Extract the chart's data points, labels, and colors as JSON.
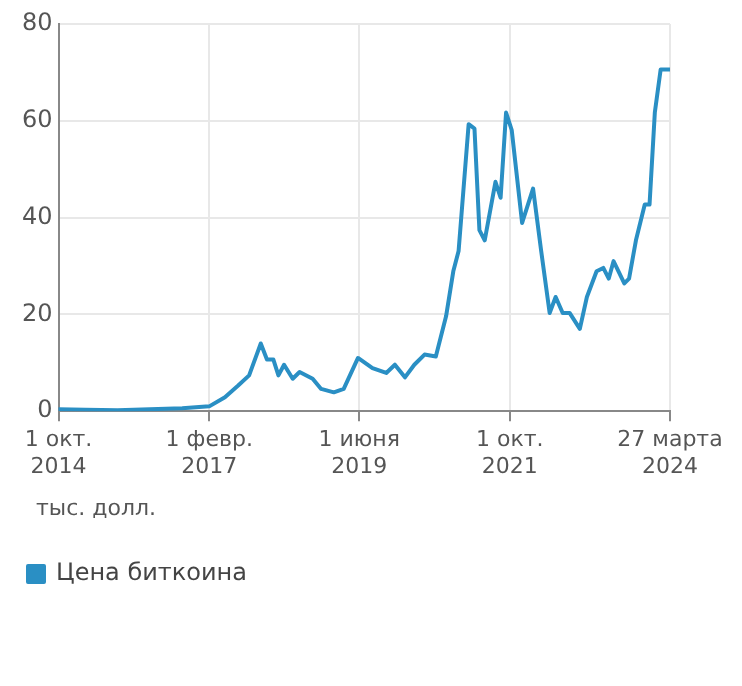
{
  "chart_data": {
    "type": "line",
    "annotations": [
      "тыс. долл."
    ],
    "x": [
      "2014-10-01",
      "2015-03-01",
      "2015-09-01",
      "2016-03-01",
      "2016-09-01",
      "2017-02-01",
      "2017-05-01",
      "2017-07-15",
      "2017-09-15",
      "2017-11-20",
      "2017-12-25",
      "2018-01-30",
      "2018-02-28",
      "2018-04-01",
      "2018-05-20",
      "2018-06-28",
      "2018-09-10",
      "2018-10-28",
      "2019-01-08",
      "2019-03-05",
      "2019-05-25",
      "2019-08-15",
      "2019-11-01",
      "2019-12-20",
      "2020-02-15",
      "2020-04-08",
      "2020-06-05",
      "2020-08-08",
      "2020-10-05",
      "2020-11-15",
      "2020-12-15",
      "2021-02-10",
      "2021-03-15",
      "2021-04-12",
      "2021-05-12",
      "2021-07-12",
      "2021-08-10",
      "2021-09-10",
      "2021-10-12",
      "2021-12-10",
      "2022-02-10",
      "2022-03-28",
      "2022-05-15",
      "2022-06-18",
      "2022-07-28",
      "2022-09-05",
      "2022-11-02",
      "2022-12-12",
      "2023-02-05",
      "2023-03-15",
      "2023-04-15",
      "2023-05-12",
      "2023-07-12",
      "2023-08-08",
      "2023-09-16",
      "2023-11-05",
      "2023-12-02",
      "2024-01-01",
      "2024-02-03",
      "2024-03-27"
    ],
    "series": [
      {
        "name": "Цена биткоина",
        "color": "#2a8fc4",
        "values": [
          0.4,
          0.3,
          0.2,
          0.4,
          0.6,
          1.0,
          2.9,
          5.3,
          7.4,
          14.0,
          10.7,
          10.7,
          7.4,
          9.6,
          6.7,
          8.1,
          6.7,
          4.6,
          3.9,
          4.6,
          11.0,
          8.9,
          7.9,
          9.6,
          7.0,
          9.6,
          11.7,
          11.3,
          19.6,
          28.9,
          33.1,
          59.3,
          58.4,
          37.4,
          35.3,
          47.4,
          44.1,
          61.7,
          58.1,
          38.9,
          46.0,
          33.1,
          20.3,
          23.6,
          20.3,
          20.3,
          17.0,
          23.6,
          28.9,
          29.6,
          27.4,
          31.0,
          26.4,
          27.4,
          35.3,
          42.7,
          42.7,
          61.7,
          70.6,
          70.6
        ]
      }
    ],
    "xlim": [
      "2014-10-01",
      "2024-03-27"
    ],
    "xticks": [
      {
        "value": "2014-10-01",
        "label": "1 окт. 2014"
      },
      {
        "value": "2017-02-01",
        "label": "1 февр. 2017"
      },
      {
        "value": "2019-06-01",
        "label": "1 июня 2019"
      },
      {
        "value": "2021-10-01",
        "label": "1 окт. 2021"
      },
      {
        "value": "2024-03-27",
        "label": "27 марта 2024"
      }
    ],
    "ylim": [
      0,
      80
    ],
    "yticks": [
      0,
      20,
      40,
      60,
      80
    ],
    "grid": true,
    "legend": "bottom left",
    "marker": "none",
    "line_style": "solid"
  }
}
